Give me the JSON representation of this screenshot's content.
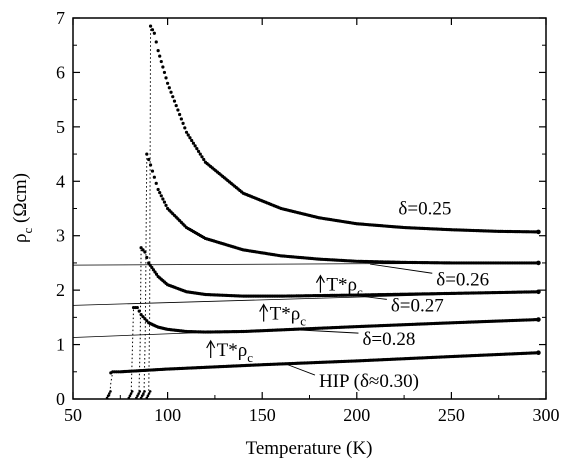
{
  "chart_data": {
    "type": "line",
    "xlabel": "Temperature (K)",
    "ylabel": "ρ",
    "ylabel_sub": "c",
    "ylabel_unit": " (Ωcm)",
    "xlim": [
      50,
      300
    ],
    "ylim": [
      0,
      7
    ],
    "xticks": [
      50,
      100,
      150,
      200,
      250,
      300
    ],
    "yticks": [
      0,
      1,
      2,
      3,
      4,
      5,
      6,
      7
    ],
    "series": [
      {
        "name": "δ=0.25",
        "x": [
          91,
          93,
          95,
          100,
          110,
          120,
          140,
          160,
          180,
          200,
          225,
          250,
          275,
          296
        ],
        "y": [
          6.85,
          6.72,
          6.4,
          5.8,
          4.9,
          4.35,
          3.78,
          3.5,
          3.33,
          3.22,
          3.15,
          3.11,
          3.08,
          3.07
        ]
      },
      {
        "name": "δ=0.26",
        "x": [
          89,
          91,
          95,
          100,
          110,
          120,
          140,
          160,
          180,
          200,
          225,
          250,
          275,
          296
        ],
        "y": [
          4.5,
          4.3,
          3.85,
          3.5,
          3.15,
          2.95,
          2.74,
          2.63,
          2.57,
          2.53,
          2.51,
          2.5,
          2.5,
          2.5
        ]
      },
      {
        "name": "δ=0.27",
        "x": [
          86,
          88,
          90,
          95,
          100,
          110,
          120,
          140,
          160,
          180,
          200,
          250,
          296
        ],
        "y": [
          2.78,
          2.7,
          2.5,
          2.25,
          2.1,
          1.97,
          1.92,
          1.89,
          1.89,
          1.9,
          1.91,
          1.94,
          1.97
        ]
      },
      {
        "name": "δ=0.28",
        "x": [
          82,
          84,
          86,
          90,
          95,
          100,
          110,
          120,
          140,
          160,
          200,
          250,
          296
        ],
        "y": [
          1.68,
          1.68,
          1.55,
          1.4,
          1.32,
          1.28,
          1.24,
          1.23,
          1.24,
          1.27,
          1.33,
          1.4,
          1.46
        ]
      },
      {
        "name": "HIP (δ≈0.30)",
        "x": [
          70,
          71,
          72,
          75,
          80,
          100,
          150,
          200,
          250,
          296
        ],
        "y": [
          0.48,
          0.5,
          0.5,
          0.5,
          0.51,
          0.55,
          0.63,
          0.7,
          0.78,
          0.85
        ]
      }
    ],
    "transitions": [
      {
        "x": [
          89,
          90,
          90.5,
          91
        ],
        "y": [
          0.02,
          0.05,
          1.5,
          6.85
        ]
      },
      {
        "x": [
          86,
          87.5,
          88.2,
          89
        ],
        "y": [
          0.02,
          0.05,
          1.2,
          4.5
        ]
      },
      {
        "x": [
          83.5,
          84.8,
          85.5,
          86
        ],
        "y": [
          0.02,
          0.05,
          1.0,
          2.78
        ]
      },
      {
        "x": [
          79.5,
          80.7,
          81.3,
          82
        ],
        "y": [
          0.02,
          0.05,
          0.8,
          1.68
        ]
      },
      {
        "x": [
          68,
          69.3,
          70,
          71
        ],
        "y": [
          0.0,
          0.03,
          0.3,
          0.5
        ]
      }
    ],
    "guide_lines": [
      {
        "x": [
          50,
          296
        ],
        "y": [
          2.46,
          2.5
        ]
      },
      {
        "x": [
          50,
          296
        ],
        "y": [
          1.72,
          1.97
        ]
      },
      {
        "x": [
          50,
          296
        ],
        "y": [
          1.13,
          1.46
        ]
      }
    ],
    "annotations": {
      "curve_labels": [
        {
          "text": "δ=0.25",
          "x": 222,
          "y": 3.5,
          "leader_x": null,
          "leader_y": null
        },
        {
          "text": "δ=0.26",
          "x": 242,
          "y": 2.2,
          "leader_x": 207,
          "leader_y": 2.48
        },
        {
          "text": "δ=0.27",
          "x": 218,
          "y": 1.72,
          "leader_x": 200,
          "leader_y": 1.9
        },
        {
          "text": "δ=0.28",
          "x": 203,
          "y": 1.1,
          "leader_x": 169,
          "leader_y": 1.27
        },
        {
          "text": "HIP (δ≈0.30)",
          "x": 180,
          "y": 0.33,
          "leader_x": 162,
          "leader_y": 0.65
        }
      ],
      "tstar": [
        {
          "text": "T*",
          "sub": "c",
          "x": 185,
          "y": 2.1
        },
        {
          "text": "T*",
          "sub": "c",
          "x": 155,
          "y": 1.57
        },
        {
          "text": "T*",
          "sub": "c",
          "x": 127,
          "y": 0.9
        }
      ]
    },
    "grid": false
  }
}
